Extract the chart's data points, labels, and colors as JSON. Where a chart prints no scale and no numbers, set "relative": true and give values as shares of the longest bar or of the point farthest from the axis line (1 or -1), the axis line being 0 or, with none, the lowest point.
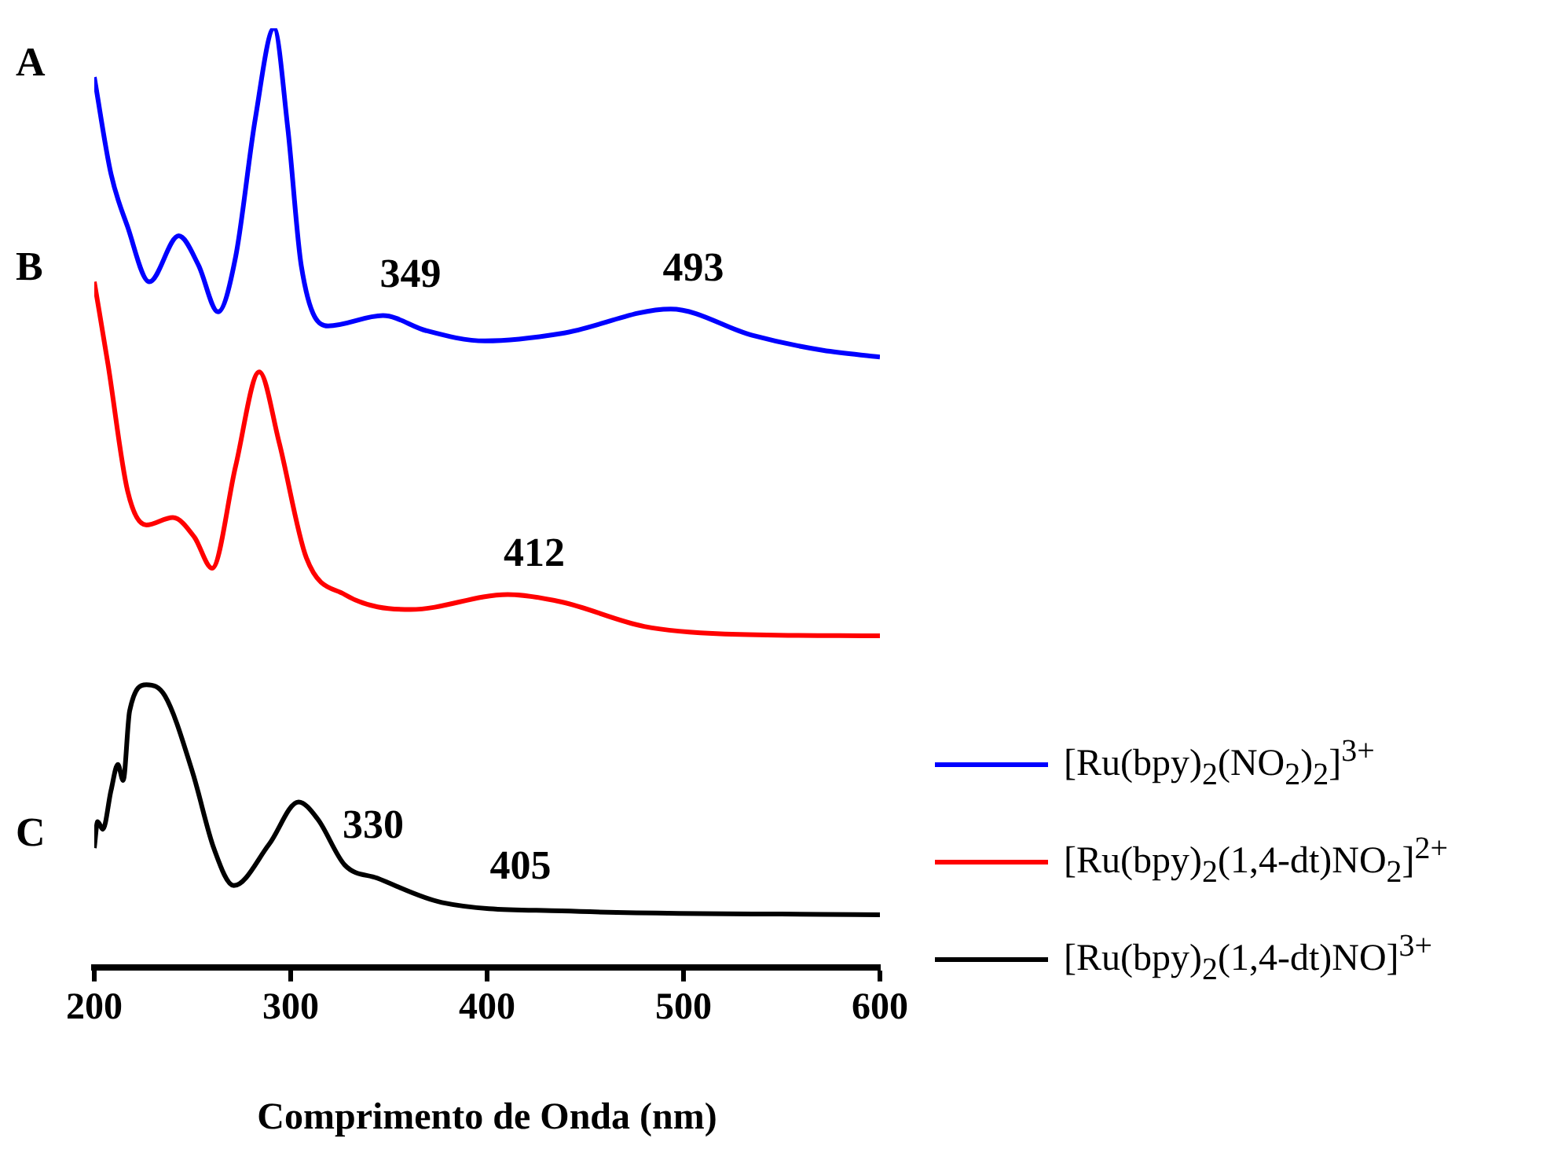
{
  "chart_data": {
    "type": "line",
    "xlabel": "Comprimento de Onda (nm)",
    "relative": true,
    "xlim": [
      200,
      600
    ],
    "xticks": [
      200,
      300,
      400,
      500,
      600
    ],
    "grid": false,
    "legend": "right",
    "marker": "none",
    "line_style": "solid",
    "series": [
      {
        "name": "[Ru(bpy)$_{2}$(NO$_{2}$)$_{2}$]$^{3+}$",
        "color": "#0000ff",
        "x": [
          200,
          208.5,
          216.9,
          228,
          243,
          253,
          263,
          272,
          282,
          291.5,
          298.5,
          305.4,
          319,
          347,
          369,
          399,
          438,
          493.5,
          535,
          571,
          600
        ],
        "values": [
          0.948,
          0.845,
          0.789,
          0.73,
          0.779,
          0.748,
          0.698,
          0.757,
          0.904,
          1.0,
          0.894,
          0.747,
          0.683,
          0.694,
          0.678,
          0.667,
          0.675,
          0.701,
          0.673,
          0.657,
          0.65
        ]
      },
      {
        "name": "[Ru(bpy)$_{2}$(1,4-dt)NO$_{2}$]$^{2+}$",
        "color": "#ff0000",
        "x": [
          200,
          207,
          217,
          226.5,
          240,
          251,
          260,
          272,
          284,
          294,
          308,
          327.5,
          361,
          410.5,
          438,
          480,
          521,
          600
        ],
        "values": [
          0.73,
          0.642,
          0.507,
          0.471,
          0.479,
          0.458,
          0.425,
          0.534,
          0.634,
          0.56,
          0.436,
          0.397,
          0.381,
          0.397,
          0.389,
          0.363,
          0.355,
          0.353
        ]
      },
      {
        "name": "[Ru(bpy)$_{2}$(1,4-dt)NO]$^{3+}$",
        "color": "#000000",
        "x": [
          200,
          201.7,
          204.4,
          208.5,
          212,
          214.7,
          218,
          226.6,
          236,
          250,
          261,
          271,
          289,
          304,
          313.7,
          327.5,
          344,
          377,
          438,
          600
        ],
        "values": [
          0.127,
          0.155,
          0.147,
          0.188,
          0.216,
          0.199,
          0.273,
          0.301,
          0.289,
          0.208,
          0.126,
          0.087,
          0.131,
          0.176,
          0.158,
          0.109,
          0.095,
          0.069,
          0.06,
          0.056
        ]
      }
    ],
    "annotations": [
      "A",
      "B",
      "C",
      {
        "text": "349",
        "x": 349,
        "y": 0.694
      },
      {
        "text": "493",
        "x": 493,
        "y": 0.701
      },
      {
        "text": "412",
        "x": 412,
        "y": 0.397
      },
      {
        "text": "330",
        "x": 330,
        "y": 0.107
      },
      {
        "text": "405",
        "x": 405,
        "y": 0.064
      }
    ]
  }
}
